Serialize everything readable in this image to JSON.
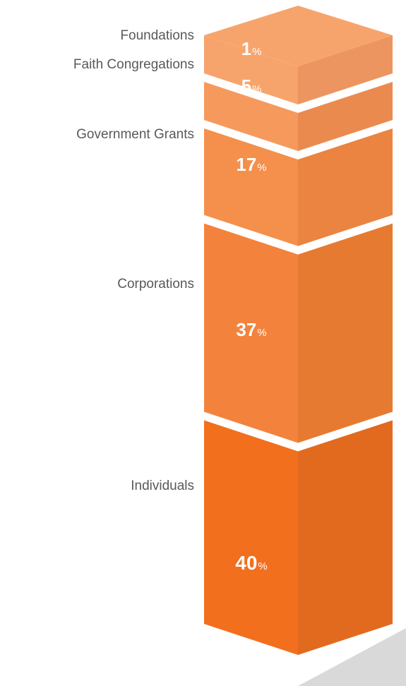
{
  "chart_data": {
    "type": "bar",
    "categories": [
      "Foundations",
      "Faith Congregations",
      "Government Grants",
      "Corporations",
      "Individuals"
    ],
    "values": [
      1,
      5,
      17,
      37,
      40
    ],
    "value_suffix": "%",
    "colors": {
      "top": [
        "#f7a46c",
        "#f59a5c",
        "#f48f4c",
        "#f3833c",
        "#f26f1e"
      ],
      "front": [
        "#f7a46c",
        "#f59a5c",
        "#f48f4c",
        "#f3833c",
        "#f26f1e"
      ],
      "side": [
        "#ed9560",
        "#eb8a4e",
        "#ea8440",
        "#e77a31",
        "#e26a1e"
      ],
      "top_face": "#f7a46c",
      "shadow": "#d9d9d9",
      "label": "#58595b",
      "value_text": "#ffffff"
    }
  }
}
